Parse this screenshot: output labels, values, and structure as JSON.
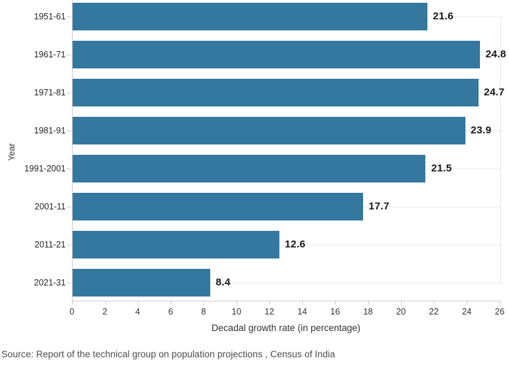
{
  "chart_data": {
    "type": "bar",
    "orientation": "horizontal",
    "title": "",
    "categories": [
      "1951-61",
      "1961-71",
      "1971-81",
      "1981-91",
      "1991-2001",
      "2001-11",
      "2011-21",
      "2021-31"
    ],
    "values": [
      21.6,
      24.8,
      24.7,
      23.9,
      21.5,
      17.7,
      12.6,
      8.4
    ],
    "value_labels": [
      "21.6",
      "24.8",
      "24.7",
      "23.9",
      "21.5",
      "17.7",
      "12.6",
      "8.4"
    ],
    "xlabel": "Decadal growth rate (in percentage)",
    "ylabel": "Year",
    "xlim": [
      0,
      26
    ],
    "x_ticks": [
      0,
      2,
      4,
      6,
      8,
      10,
      12,
      14,
      16,
      18,
      20,
      22,
      24,
      26
    ],
    "grid": "light horizontal gridline at each category center, left axis line, bottom axis line with ticks",
    "legend": "none",
    "bar_color": "#34789f",
    "value_label_color": "#1a1a1a",
    "axis_line_color": "#cccccc",
    "gridline_color": "#e8e8e8"
  },
  "source_note": "Source: Report of the technical group on population projections , Census of India"
}
